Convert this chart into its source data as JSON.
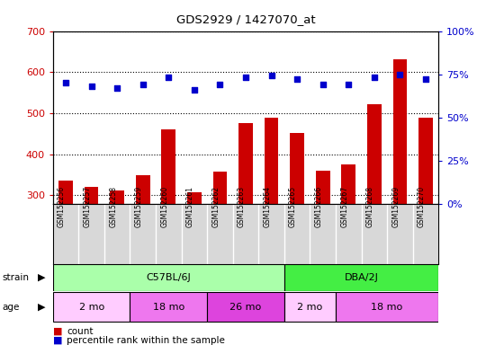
{
  "title": "GDS2929 / 1427070_at",
  "samples": [
    "GSM152256",
    "GSM152257",
    "GSM152258",
    "GSM152259",
    "GSM152260",
    "GSM152261",
    "GSM152262",
    "GSM152263",
    "GSM152264",
    "GSM152265",
    "GSM152266",
    "GSM152267",
    "GSM152268",
    "GSM152269",
    "GSM152270"
  ],
  "counts": [
    335,
    320,
    312,
    350,
    460,
    308,
    358,
    475,
    490,
    452,
    360,
    375,
    522,
    632,
    490
  ],
  "percentile_ranks": [
    70,
    68,
    67,
    69,
    73,
    66,
    69,
    73,
    74,
    72,
    69,
    69,
    73,
    75,
    72
  ],
  "ylim_left": [
    280,
    700
  ],
  "ylim_right": [
    0,
    100
  ],
  "yticks_left": [
    300,
    400,
    500,
    600,
    700
  ],
  "yticks_right": [
    0,
    25,
    50,
    75,
    100
  ],
  "bar_color": "#cc0000",
  "dot_color": "#0000cc",
  "strain_groups": [
    {
      "label": "C57BL/6J",
      "start": 0,
      "end": 9,
      "color": "#aaffaa"
    },
    {
      "label": "DBA/2J",
      "start": 9,
      "end": 15,
      "color": "#44ee44"
    }
  ],
  "age_groups": [
    {
      "label": "2 mo",
      "start": 0,
      "end": 3,
      "color": "#ffccff"
    },
    {
      "label": "18 mo",
      "start": 3,
      "end": 6,
      "color": "#ee77ee"
    },
    {
      "label": "26 mo",
      "start": 6,
      "end": 9,
      "color": "#dd44dd"
    },
    {
      "label": "2 mo",
      "start": 9,
      "end": 11,
      "color": "#ffccff"
    },
    {
      "label": "18 mo",
      "start": 11,
      "end": 15,
      "color": "#ee77ee"
    }
  ],
  "bar_color_legend": "#cc0000",
  "dot_color_legend": "#0000cc",
  "grid_color": "black",
  "plot_bg": "#ffffff",
  "xtick_bg": "#d8d8d8"
}
